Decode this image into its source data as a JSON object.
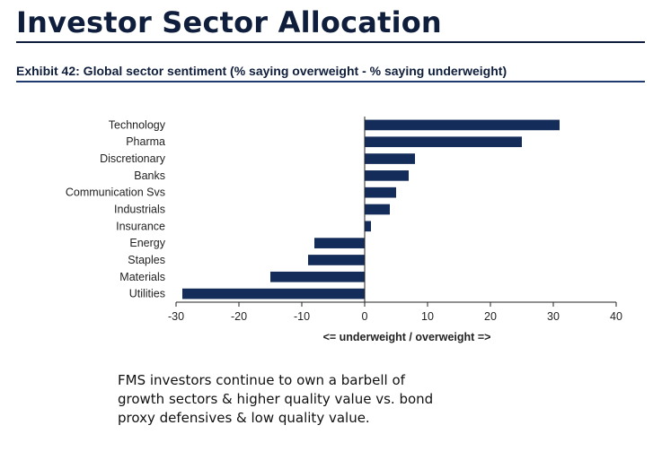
{
  "page_title": "Investor Sector Allocation",
  "exhibit_title": "Exhibit 42: Global sector sentiment (% saying overweight - % saying underweight)",
  "note_lines": [
    "FMS investors continue to own a barbell of",
    "growth sectors & higher quality value vs. bond",
    "proxy defensives & low quality value."
  ],
  "colors": {
    "bar": "#142c5a",
    "title": "#0f1e3c"
  },
  "chart_data": {
    "type": "bar",
    "orientation": "horizontal",
    "categories": [
      "Technology",
      "Pharma",
      "Discretionary",
      "Banks",
      "Communication Svs",
      "Industrials",
      "Insurance",
      "Energy",
      "Staples",
      "Materials",
      "Utilities"
    ],
    "values": [
      31,
      25,
      8,
      7,
      5,
      4,
      1,
      -8,
      -9,
      -15,
      -29
    ],
    "xlabel": "<= underweight / overweight =>",
    "ylabel": "",
    "xlim": [
      -30,
      40
    ],
    "xticks": [
      -30,
      -20,
      -10,
      0,
      10,
      20,
      30,
      40
    ],
    "grid": false
  }
}
